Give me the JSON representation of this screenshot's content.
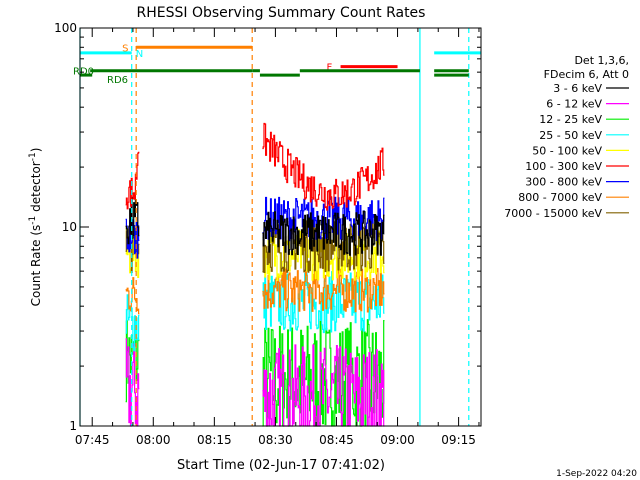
{
  "chart_data": {
    "type": "line",
    "title": "RHESSI Observing Summary Count Rates",
    "xlabel": "Start Time (02-Jun-17 07:41:02)",
    "ylabel_main": "Count Rate (s",
    "ylabel_sup1": "-1",
    "ylabel_mid": " detector",
    "ylabel_sup2": "-1",
    "ylabel_end": ")",
    "yscale": "log",
    "ylim": [
      1,
      100
    ],
    "xlim_minutes": [
      -3.0,
      95.5
    ],
    "x_ticks": [
      {
        "label": "07:45",
        "value": 0
      },
      {
        "label": "08:00",
        "value": 15
      },
      {
        "label": "08:15",
        "value": 30
      },
      {
        "label": "08:30",
        "value": 45
      },
      {
        "label": "08:45",
        "value": 60
      },
      {
        "label": "09:00",
        "value": 75
      },
      {
        "label": "09:15",
        "value": 90
      }
    ],
    "y_ticks": [
      {
        "label": "1",
        "value": 1
      },
      {
        "label": "10",
        "value": 10
      },
      {
        "label": "100",
        "value": 100
      }
    ],
    "legend_header": [
      "Det 1,3,6,",
      "FDecim 6, Att 0"
    ],
    "series": [
      {
        "name": "3 - 6 keV",
        "color": "#000000",
        "segments": [
          [
            8.2,
            11.5,
            10.5,
            0.06
          ],
          [
            41.8,
            71.7,
            9.3,
            0.05
          ]
        ]
      },
      {
        "name": "6 - 12 keV",
        "color": "#ff00ff",
        "segments": [
          [
            8.2,
            11.5,
            1.5,
            0.12
          ],
          [
            41.8,
            71.7,
            1.4,
            0.12
          ]
        ]
      },
      {
        "name": "12 - 25 keV",
        "color": "#00ee00",
        "segments": [
          [
            8.2,
            11.5,
            2.2,
            0.1
          ],
          [
            41.8,
            71.7,
            1.7,
            0.14
          ]
        ]
      },
      {
        "name": "25 - 50 keV",
        "color": "#00ffff",
        "segments": [
          [
            8.2,
            11.5,
            3.3,
            0.07
          ],
          [
            41.8,
            71.7,
            4.2,
            0.07
          ]
        ]
      },
      {
        "name": "50 - 100 keV",
        "color": "#ffff00",
        "segments": [
          [
            8.2,
            11.5,
            7.5,
            0.06
          ],
          [
            41.8,
            71.7,
            7.3,
            0.06
          ]
        ]
      },
      {
        "name": "100 - 300 keV",
        "color": "#ff0000",
        "segments": [
          [
            8.2,
            11.5,
            15.0,
            0.04
          ],
          [
            41.8,
            71.7,
            17.5,
            0.04
          ]
        ]
      },
      {
        "name": "300 - 800 keV",
        "color": "#0000ff",
        "segments": [
          [
            8.2,
            11.5,
            9.0,
            0.05
          ],
          [
            41.8,
            71.7,
            11.0,
            0.05
          ]
        ]
      },
      {
        "name": "800 - 7000 keV",
        "color": "#ff8000",
        "segments": [
          [
            8.2,
            11.5,
            4.6,
            0.05
          ],
          [
            41.8,
            71.7,
            4.8,
            0.05
          ]
        ]
      },
      {
        "name": "7000 - 15000 keV",
        "color": "#806000",
        "segments": [
          [
            8.2,
            11.5,
            8.0,
            0.06
          ],
          [
            41.8,
            71.7,
            8.0,
            0.06
          ]
        ]
      }
    ],
    "flag_bars": [
      {
        "label": "S",
        "color": "#ff8000",
        "y": 80,
        "segments": [
          [
            10.8,
            39.3
          ]
        ]
      },
      {
        "label": "N",
        "color": "#00ffff",
        "y": 75,
        "segments": [
          [
            -3.0,
            9.7
          ],
          [
            84.0,
            95.5
          ]
        ]
      },
      {
        "label": "F",
        "color": "#ff0000",
        "y": 64,
        "segments": [
          [
            61.0,
            75.0
          ]
        ]
      },
      {
        "label": "RD0",
        "color": "#007700",
        "y": 61,
        "segments": [
          [
            -0.5,
            39.3
          ],
          [
            39.3,
            41.2
          ],
          [
            51.0,
            80.5
          ],
          [
            84.0,
            92.5
          ]
        ]
      },
      {
        "label": "RD6",
        "color": "#007700",
        "y": 58,
        "segments": [
          [
            -3.0,
            0.0
          ],
          [
            41.2,
            51.0
          ],
          [
            84.0,
            92.5
          ]
        ]
      }
    ],
    "vlines": [
      {
        "x": 9.7,
        "color": "#00ffff",
        "dashed": true
      },
      {
        "x": 10.8,
        "color": "#ff8000",
        "dashed": true
      },
      {
        "x": 39.3,
        "color": "#ff8000",
        "dashed": true
      },
      {
        "x": 80.5,
        "color": "#00ffff",
        "dashed": false
      },
      {
        "x": 92.5,
        "color": "#00ffff",
        "dashed": true
      },
      {
        "x": -3.0,
        "color": "#00ffff",
        "dashed": false
      }
    ],
    "timestamp": "1-Sep-2022 04:20"
  }
}
